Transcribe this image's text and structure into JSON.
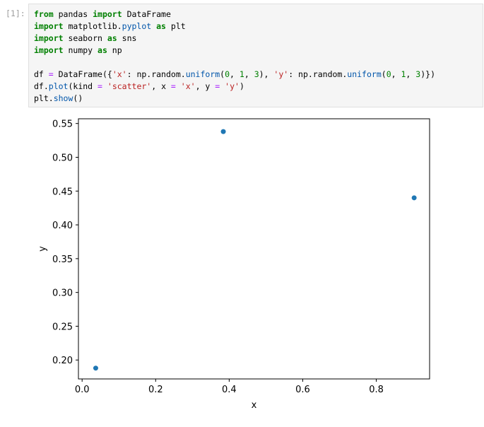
{
  "cell": {
    "prompt": "[1]:",
    "code_lines": [
      [
        {
          "t": "from",
          "c": "kw"
        },
        {
          "t": " pandas "
        },
        {
          "t": "import",
          "c": "kw"
        },
        {
          "t": " DataFrame"
        }
      ],
      [
        {
          "t": "import",
          "c": "kw"
        },
        {
          "t": " matplotlib."
        },
        {
          "t": "pyplot",
          "c": "fn"
        },
        {
          "t": " "
        },
        {
          "t": "as",
          "c": "kw"
        },
        {
          "t": " plt"
        }
      ],
      [
        {
          "t": "import",
          "c": "kw"
        },
        {
          "t": " seaborn "
        },
        {
          "t": "as",
          "c": "kw"
        },
        {
          "t": " sns"
        }
      ],
      [
        {
          "t": "import",
          "c": "kw"
        },
        {
          "t": " numpy "
        },
        {
          "t": "as",
          "c": "kw"
        },
        {
          "t": " np"
        }
      ],
      [],
      [
        {
          "t": "df "
        },
        {
          "t": "=",
          "c": "op"
        },
        {
          "t": " DataFrame({"
        },
        {
          "t": "'x'",
          "c": "st"
        },
        {
          "t": ": np.random."
        },
        {
          "t": "uniform",
          "c": "fn"
        },
        {
          "t": "("
        },
        {
          "t": "0",
          "c": "nm"
        },
        {
          "t": ", "
        },
        {
          "t": "1",
          "c": "nm"
        },
        {
          "t": ", "
        },
        {
          "t": "3",
          "c": "nm"
        },
        {
          "t": "), "
        },
        {
          "t": "'y'",
          "c": "st"
        },
        {
          "t": ": np.random."
        },
        {
          "t": "uniform",
          "c": "fn"
        },
        {
          "t": "("
        },
        {
          "t": "0",
          "c": "nm"
        },
        {
          "t": ", "
        },
        {
          "t": "1",
          "c": "nm"
        },
        {
          "t": ", "
        },
        {
          "t": "3",
          "c": "nm"
        },
        {
          "t": ")})"
        }
      ],
      [
        {
          "t": "df."
        },
        {
          "t": "plot",
          "c": "fn"
        },
        {
          "t": "(kind "
        },
        {
          "t": "=",
          "c": "op"
        },
        {
          "t": " "
        },
        {
          "t": "'scatter'",
          "c": "st"
        },
        {
          "t": ", x "
        },
        {
          "t": "=",
          "c": "op"
        },
        {
          "t": " "
        },
        {
          "t": "'x'",
          "c": "st"
        },
        {
          "t": ", y "
        },
        {
          "t": "=",
          "c": "op"
        },
        {
          "t": " "
        },
        {
          "t": "'y'",
          "c": "st"
        },
        {
          "t": ")"
        }
      ],
      [
        {
          "t": "plt."
        },
        {
          "t": "show",
          "c": "fn"
        },
        {
          "t": "()"
        }
      ]
    ]
  },
  "chart_data": {
    "type": "scatter",
    "xlabel": "x",
    "ylabel": "y",
    "xlim": [
      -0.01,
      0.945
    ],
    "ylim": [
      0.172,
      0.557
    ],
    "xticks": [
      0.0,
      0.2,
      0.4,
      0.6,
      0.8
    ],
    "xtick_labels": [
      "0.0",
      "0.2",
      "0.4",
      "0.6",
      "0.8"
    ],
    "yticks": [
      0.2,
      0.25,
      0.3,
      0.35,
      0.4,
      0.45,
      0.5,
      0.55
    ],
    "ytick_labels": [
      "0.20",
      "0.25",
      "0.30",
      "0.35",
      "0.40",
      "0.45",
      "0.50",
      "0.55"
    ],
    "grid": false,
    "marker_color": "#1f77b4",
    "points": [
      {
        "x": 0.037,
        "y": 0.188
      },
      {
        "x": 0.384,
        "y": 0.538
      },
      {
        "x": 0.903,
        "y": 0.44
      }
    ]
  }
}
